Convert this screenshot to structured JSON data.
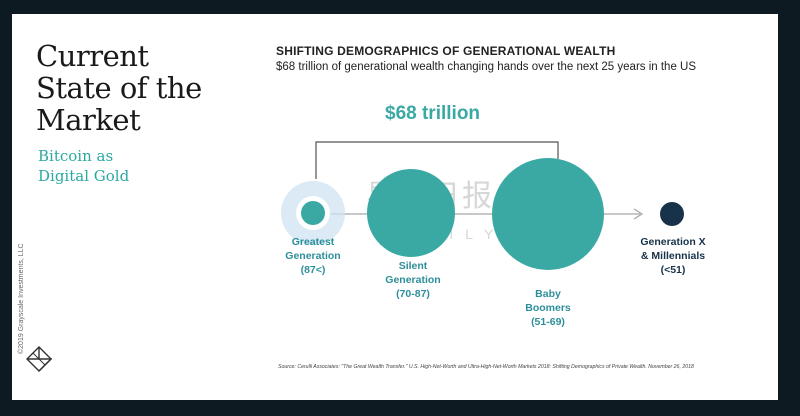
{
  "slide": {
    "title": "Current\nState of the\nMarket",
    "subtitle": "Bitcoin as\nDigital Gold",
    "copyright": "©2019 Grayscale Investments, LLC"
  },
  "chart": {
    "heading": "SHIFTING DEMOGRAPHICS OF GENERATIONAL WEALTH",
    "subheading": "$68 trillion of generational wealth changing hands over the next 25 years in the US",
    "total": "$68 trillion",
    "groups": [
      {
        "label": "Greatest\nGeneration\n(87<)",
        "color": "#3aa9a4"
      },
      {
        "label": "Silent\nGeneration\n(70-87)",
        "color": "#3aa9a4"
      },
      {
        "label": "Baby\nBoomers\n(51-69)",
        "color": "#3aa9a4"
      },
      {
        "label": "Generation X\n& Millennials\n(<51)",
        "color": "#17324a"
      }
    ],
    "source": "Source: Cerulli Associates: \"The Great Wealth Transfer.\" U.S. High-Net-Worth and Ultra-High-Net-Worth Markets 2018: Shifting Demographics of Private Wealth. November 26, 2018"
  },
  "watermark": {
    "text": "星球日报",
    "sub": "ODAILY"
  },
  "colors": {
    "teal": "#3aa9a4",
    "navy": "#17324a",
    "arrow": "#a7a7a7",
    "background": "#0e1a22"
  }
}
